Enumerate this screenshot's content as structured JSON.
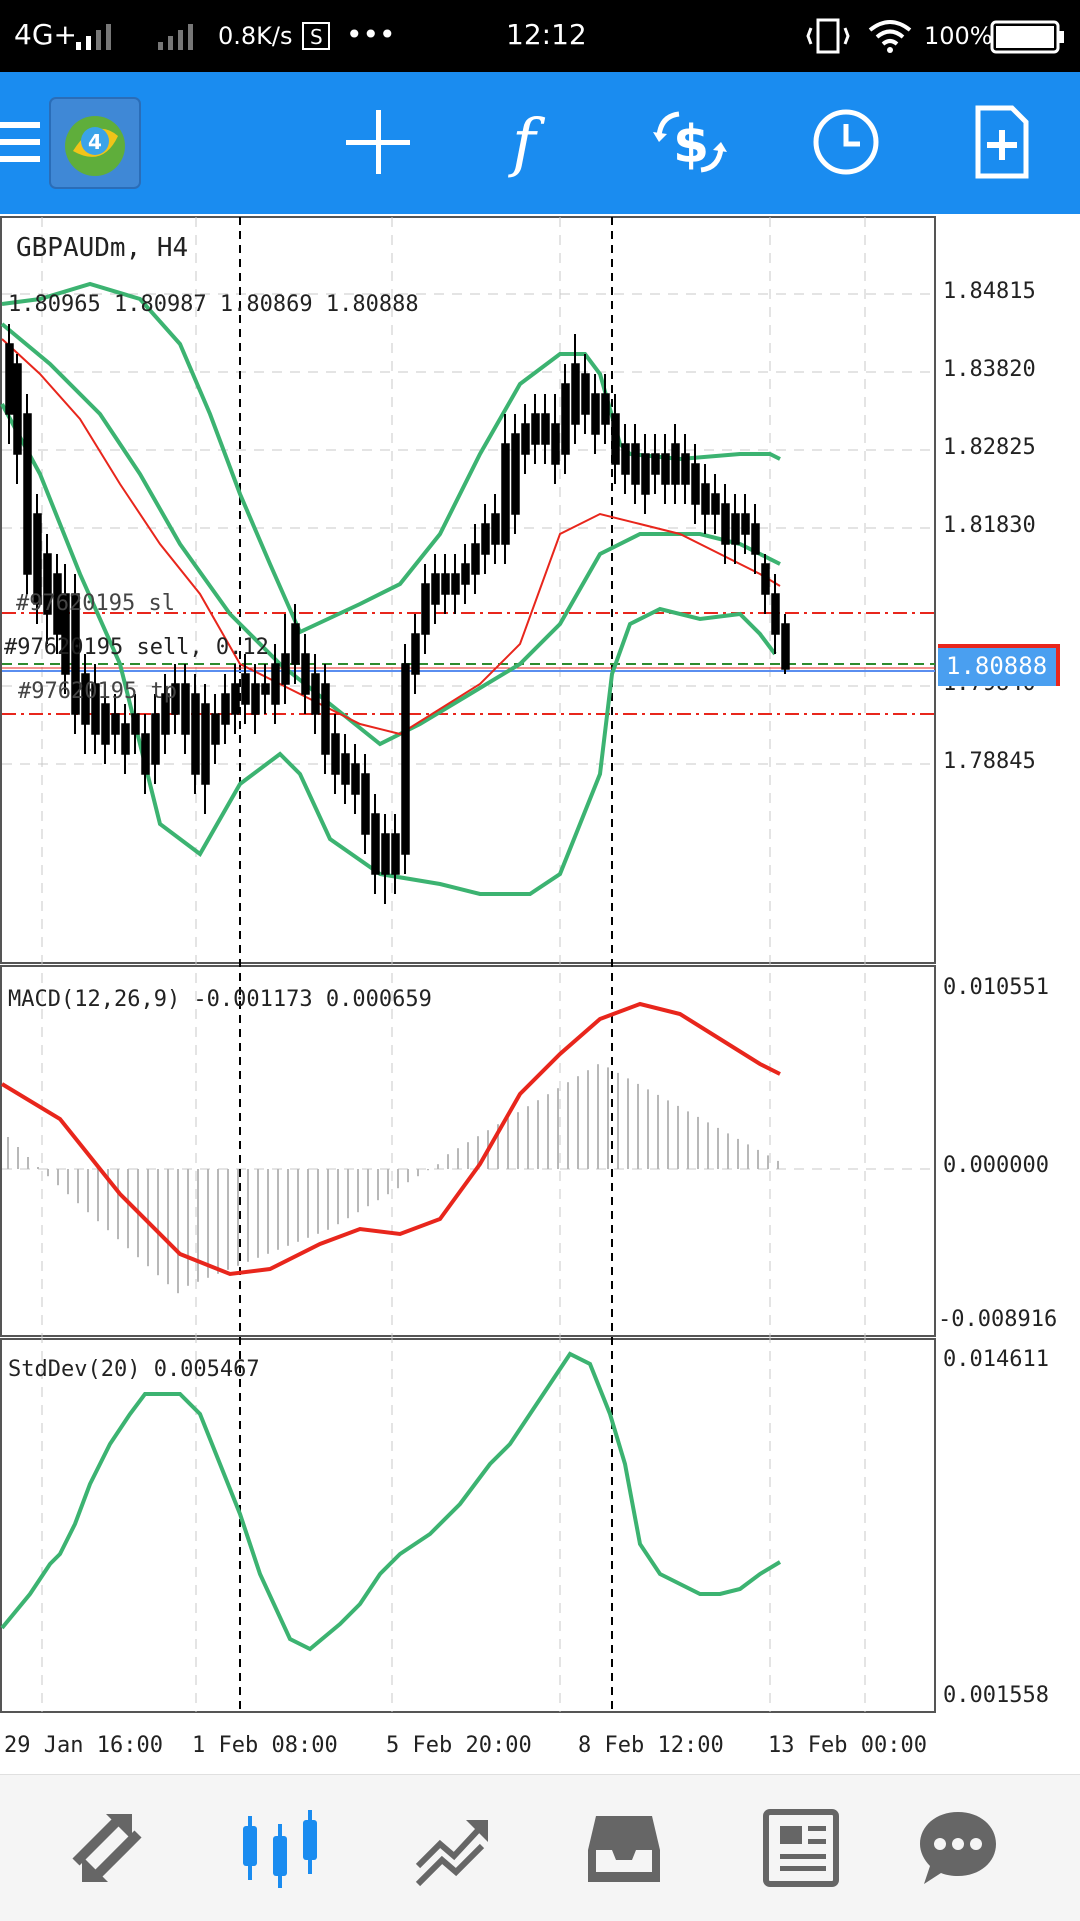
{
  "status_bar": {
    "network": "4G+",
    "speed": "0.8K/s",
    "dots": "•••",
    "time": "12:12",
    "battery": "100%"
  },
  "toolbar": {
    "items": [
      {
        "name": "menu-icon"
      },
      {
        "name": "mt4-logo-icon"
      },
      {
        "name": "crosshair-icon"
      },
      {
        "name": "indicators-f-icon"
      },
      {
        "name": "trade-dollar-icon"
      },
      {
        "name": "timeframe-clock-icon"
      },
      {
        "name": "new-document-icon"
      }
    ]
  },
  "chart": {
    "symbol": "GBPAUDm, H4",
    "ohlc": "1.80965 1.80987 1.80869 1.80888",
    "current_price": "1.80888",
    "orders": {
      "sl": "#97620195 sl",
      "sell": "#97620195 sell, 0.12",
      "tp": "#97620195 tp"
    },
    "price_ticks": [
      "1.84815",
      "1.83820",
      "1.82825",
      "1.81830",
      "1.79840",
      "1.78845"
    ],
    "macd_label": "MACD(12,26,9) -0.001173 0.000659",
    "macd_ticks": [
      "0.010551",
      "0.000000",
      "-0.008916"
    ],
    "stddev_label": "StdDev(20) 0.005467",
    "stddev_ticks": [
      "0.014611",
      "0.001558"
    ],
    "time_labels": [
      "29 Jan 16:00",
      "1 Feb 08:00",
      "5 Feb 20:00",
      "8 Feb 12:00",
      "13 Feb 00:00"
    ]
  },
  "colors": {
    "accent": "#1a8cf0",
    "bollinger": "#3cb371",
    "ma": "#e8261c",
    "order_line": "#e8261c",
    "price_label_bg": "#4a9ff0"
  },
  "bottom_nav": {
    "items": [
      {
        "name": "quotes-icon"
      },
      {
        "name": "chart-icon",
        "active": true
      },
      {
        "name": "trade-icon"
      },
      {
        "name": "history-icon"
      },
      {
        "name": "news-icon"
      },
      {
        "name": "chat-icon"
      }
    ]
  }
}
